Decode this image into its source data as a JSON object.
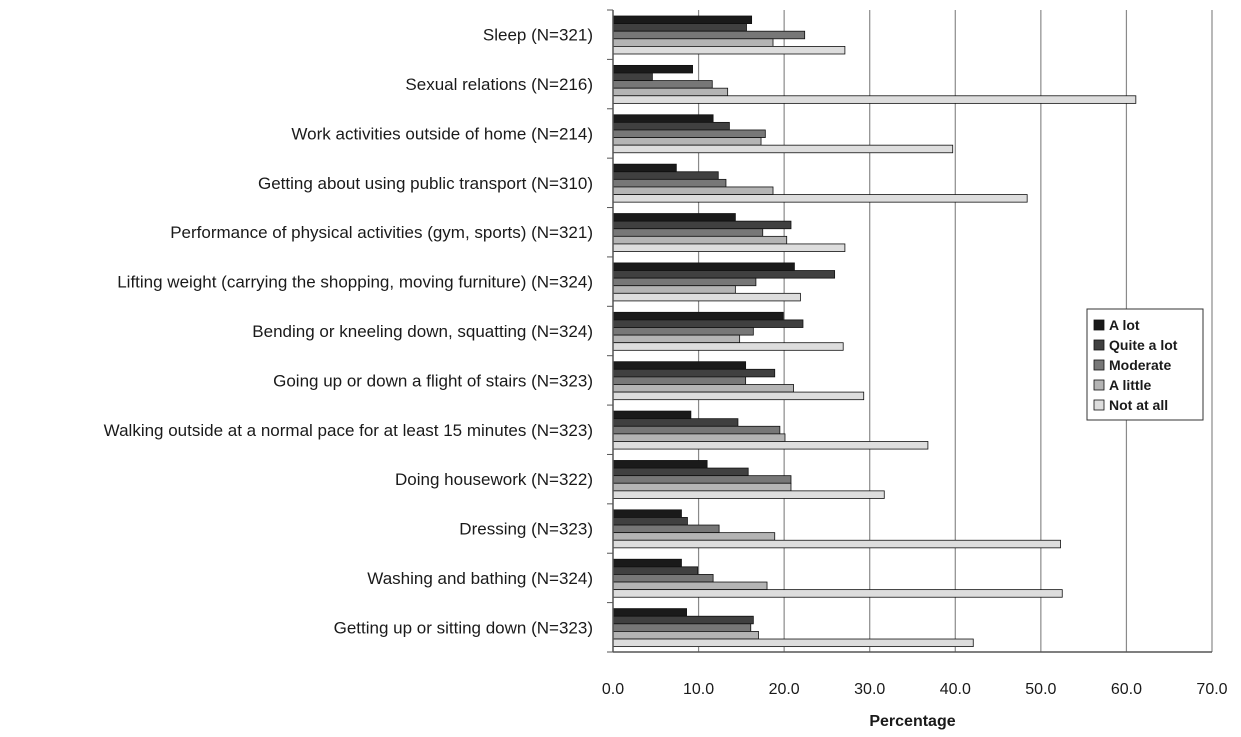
{
  "chart_data": {
    "type": "bar",
    "orientation": "horizontal",
    "xlabel": "Percentage",
    "ylabel": "",
    "xlim": [
      0,
      70
    ],
    "x_ticks": [
      "0.0",
      "10.0",
      "20.0",
      "30.0",
      "40.0",
      "50.0",
      "60.0",
      "70.0"
    ],
    "grid": "vertical",
    "legend_position": "right",
    "categories": [
      "Sleep (N=321)",
      "Sexual relations (N=216)",
      "Work activities outside of home (N=214)",
      "Getting about using public transport (N=310)",
      "Performance of physical activities (gym, sports) (N=321)",
      "Lifting weight (carrying the shopping, moving furniture) (N=324)",
      "Bending or kneeling down, squatting (N=324)",
      "Going up or down a flight of stairs (N=323)",
      "Walking outside at a normal pace for at least 15 minutes (N=323)",
      "Doing housework (N=322)",
      "Dressing (N=323)",
      "Washing and bathing (N=324)",
      "Getting up or sitting down (N=323)"
    ],
    "series": [
      {
        "name": "A lot",
        "color": "#1a1a1a",
        "values": [
          16.2,
          9.3,
          11.7,
          7.4,
          14.3,
          21.2,
          19.9,
          15.5,
          9.1,
          11.0,
          8.0,
          8.0,
          8.6
        ]
      },
      {
        "name": "Quite a lot",
        "color": "#404040",
        "values": [
          15.6,
          4.6,
          13.6,
          12.3,
          20.8,
          25.9,
          22.2,
          18.9,
          14.6,
          15.8,
          8.7,
          9.9,
          16.4
        ]
      },
      {
        "name": "Moderate",
        "color": "#777777",
        "values": [
          22.4,
          11.6,
          17.8,
          13.2,
          17.5,
          16.7,
          16.4,
          15.5,
          19.5,
          20.8,
          12.4,
          11.7,
          16.1
        ]
      },
      {
        "name": "A little",
        "color": "#b4b4b4",
        "values": [
          18.7,
          13.4,
          17.3,
          18.7,
          20.3,
          14.3,
          14.8,
          21.1,
          20.1,
          20.8,
          18.9,
          18.0,
          17.0
        ]
      },
      {
        "name": "Not at all",
        "color": "#dddddd",
        "values": [
          27.1,
          61.1,
          39.7,
          48.4,
          27.1,
          21.9,
          26.9,
          29.3,
          36.8,
          31.7,
          52.3,
          52.5,
          42.1
        ]
      }
    ]
  }
}
